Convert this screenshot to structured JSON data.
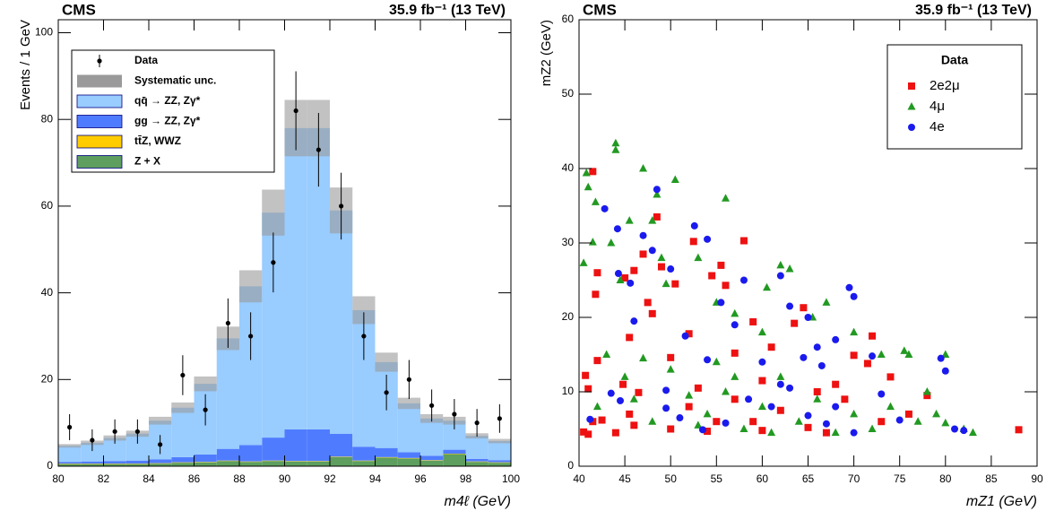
{
  "chart_data": [
    {
      "type": "histogram",
      "header_left": "CMS",
      "header_right": "35.9 fb⁻¹ (13 TeV)",
      "x_label": "m4ℓ (GeV)",
      "y_label": "Events / 1 GeV",
      "bins": [
        80,
        81,
        82,
        83,
        84,
        85,
        86,
        87,
        88,
        89,
        90,
        91,
        92,
        93,
        94,
        95,
        96,
        97,
        98,
        99,
        100
      ],
      "xlim": [
        80,
        100
      ],
      "xticks": [
        80,
        82,
        84,
        86,
        88,
        90,
        92,
        94,
        96,
        98,
        100
      ],
      "ylim": [
        0,
        103
      ],
      "yticks": [
        0,
        20,
        40,
        60,
        80,
        100
      ],
      "series": [
        {
          "name": "qq̄ → ZZ, Zγ*",
          "color": "#99ccff",
          "values": [
            3.7,
            4.3,
            5.3,
            6.2,
            8.9,
            11.4,
            16.3,
            25.5,
            36.6,
            51.9,
            69.5,
            69.5,
            51.5,
            31.5,
            19.8,
            11.3,
            8.6,
            6.7,
            5.3,
            4.4
          ]
        },
        {
          "name": "gg → ZZ, Zγ*",
          "color": "#4f7cff",
          "values": [
            0.4,
            0.5,
            0.6,
            0.7,
            0.9,
            1.2,
            1.7,
            2.7,
            3.8,
            5.3,
            7.3,
            7.3,
            5.3,
            3.2,
            2.1,
            1.3,
            1.0,
            0.9,
            0.6,
            0.5
          ]
        },
        {
          "name": "tt̄Z, WWZ",
          "color": "#ffcc00",
          "values": [
            0.1,
            0.1,
            0.1,
            0.1,
            0.1,
            0.1,
            0.1,
            0.1,
            0.1,
            0.1,
            0.1,
            0.1,
            0.1,
            0.1,
            0.1,
            0.1,
            0.1,
            0.1,
            0.1,
            0.1
          ]
        },
        {
          "name": "Z + X",
          "color": "#5e9e5e",
          "values": [
            0.5,
            0.5,
            0.5,
            0.5,
            0.6,
            0.8,
            0.9,
            1.2,
            1.0,
            1.2,
            1.1,
            1.1,
            2.1,
            1.2,
            2.0,
            1.8,
            1.3,
            2.8,
            1.0,
            0.8
          ]
        }
      ],
      "syst": {
        "name": "Systematic unc.",
        "color": "#9a9a9a",
        "values": [
          0.4,
          0.5,
          0.6,
          0.7,
          0.9,
          1.2,
          1.7,
          2.7,
          3.7,
          5.3,
          6.5,
          6.5,
          5.3,
          3.2,
          2.2,
          1.3,
          1.0,
          0.9,
          0.6,
          0.5
        ]
      },
      "data": {
        "name": "Data",
        "color": "#000000",
        "values": [
          9,
          6,
          8,
          8,
          5,
          21,
          13,
          33,
          30,
          47,
          82,
          73,
          60,
          30,
          17,
          20,
          14,
          12,
          10,
          11
        ],
        "errors": [
          3,
          2.5,
          2.8,
          2.8,
          2.2,
          4.6,
          3.6,
          5.7,
          5.5,
          6.9,
          9.1,
          8.5,
          7.7,
          5.5,
          4.1,
          4.5,
          3.7,
          3.5,
          3.2,
          3.3
        ]
      }
    },
    {
      "type": "scatter",
      "header_left": "CMS",
      "header_right": "35.9 fb⁻¹ (13 TeV)",
      "x_label": "mZ1 (GeV)",
      "y_label": "mZ2 (GeV)",
      "legend_title": "Data",
      "xlim": [
        40,
        90
      ],
      "xticks": [
        40,
        45,
        50,
        55,
        60,
        65,
        70,
        75,
        80,
        85,
        90
      ],
      "ylim": [
        0,
        60
      ],
      "yticks": [
        0,
        10,
        20,
        30,
        40,
        50,
        60
      ],
      "series": [
        {
          "name": "2e2μ",
          "color": "#ee1111",
          "marker": "square",
          "x": [
            41.5,
            40.7,
            41,
            41.8,
            42,
            42,
            40.5,
            41.5,
            41,
            42.5,
            44,
            44.8,
            45,
            45.5,
            46,
            46.5,
            47,
            47.5,
            48,
            48.5,
            49,
            50,
            50.5,
            52,
            52.5,
            53,
            54.5,
            55.5,
            56,
            57,
            58,
            59,
            60,
            61,
            63.5,
            64.5,
            66,
            68,
            70,
            71.5,
            72,
            74,
            76,
            88,
            50,
            55,
            60,
            65,
            45.5,
            52,
            57,
            62,
            67,
            46,
            54,
            59,
            69,
            73,
            78
          ],
          "values": [
            39.6,
            12.2,
            10.4,
            23.1,
            26,
            14.2,
            4.6,
            6,
            4.3,
            6.2,
            4.5,
            11,
            25.3,
            17.3,
            26.3,
            9.9,
            28.5,
            22,
            20.5,
            33.5,
            26.8,
            14.6,
            24.5,
            17.8,
            30.2,
            10.5,
            25.6,
            27,
            24.3,
            15.2,
            30.3,
            19.4,
            11.5,
            16,
            19.2,
            21.3,
            10,
            11,
            14.9,
            13.8,
            17.5,
            12,
            7,
            4.9,
            5,
            6,
            4.8,
            5.2,
            7,
            8,
            9,
            7.5,
            4.5,
            5.5,
            4.7,
            6,
            9,
            6,
            9.5
          ]
        },
        {
          "name": "4μ",
          "color": "#229922",
          "marker": "triangle",
          "x": [
            40.5,
            40.8,
            41,
            41.5,
            41.8,
            44,
            44,
            43.5,
            44.5,
            45.5,
            47,
            48,
            48.5,
            49.5,
            50.5,
            49,
            53,
            56,
            55,
            57,
            60,
            62,
            63,
            60.5,
            65.5,
            67,
            70,
            73,
            76,
            80,
            75.5,
            78,
            82,
            83,
            80,
            43,
            47,
            50,
            55,
            42,
            45,
            48,
            52,
            54,
            56,
            58,
            60,
            62,
            64,
            66,
            68,
            70,
            72,
            74,
            77,
            79,
            61,
            57,
            53,
            46
          ],
          "values": [
            27.3,
            39.4,
            37.5,
            30.1,
            35.5,
            43.4,
            42.5,
            30,
            25,
            33,
            40,
            33,
            36.5,
            24.5,
            38.5,
            28,
            28,
            36,
            22,
            20.5,
            18,
            27,
            26.5,
            24,
            20,
            22,
            18,
            15,
            15,
            15,
            15.5,
            10,
            5,
            4.5,
            5.8,
            15,
            14.5,
            13,
            14,
            8,
            12,
            6,
            9.5,
            7,
            10,
            5,
            8,
            12,
            6,
            9,
            4.5,
            7,
            5,
            8,
            6,
            7,
            4.5,
            12,
            5.5,
            9
          ]
        },
        {
          "name": "4e",
          "color": "#1a1aee",
          "marker": "circle",
          "x": [
            42.8,
            44.2,
            44.3,
            45.6,
            46,
            47,
            48.5,
            48,
            50,
            51.6,
            52.6,
            54,
            54,
            55.5,
            58,
            57,
            62,
            63,
            65,
            66,
            68,
            69.5,
            70,
            72,
            79.5,
            80,
            41.2,
            43.5,
            44.5,
            49.5,
            49.5,
            51,
            53.5,
            56,
            58.5,
            61,
            63,
            65,
            67,
            68,
            70,
            73,
            75,
            81,
            82,
            60,
            62,
            64.5,
            66.5
          ],
          "values": [
            34.6,
            31.9,
            25.9,
            24.6,
            19.5,
            31,
            37.2,
            29,
            26.5,
            17.5,
            32.3,
            30.5,
            14.3,
            22,
            25,
            19,
            25.6,
            21.5,
            20,
            16,
            17,
            24,
            22.8,
            14.8,
            14.5,
            12.8,
            6.3,
            9.8,
            8.8,
            10.2,
            7.8,
            6.5,
            4.9,
            5.8,
            9,
            8,
            10.5,
            6.8,
            5.7,
            8,
            4.5,
            9.7,
            6.2,
            5,
            4.8,
            14,
            11,
            14.6,
            13.5
          ]
        }
      ]
    }
  ]
}
